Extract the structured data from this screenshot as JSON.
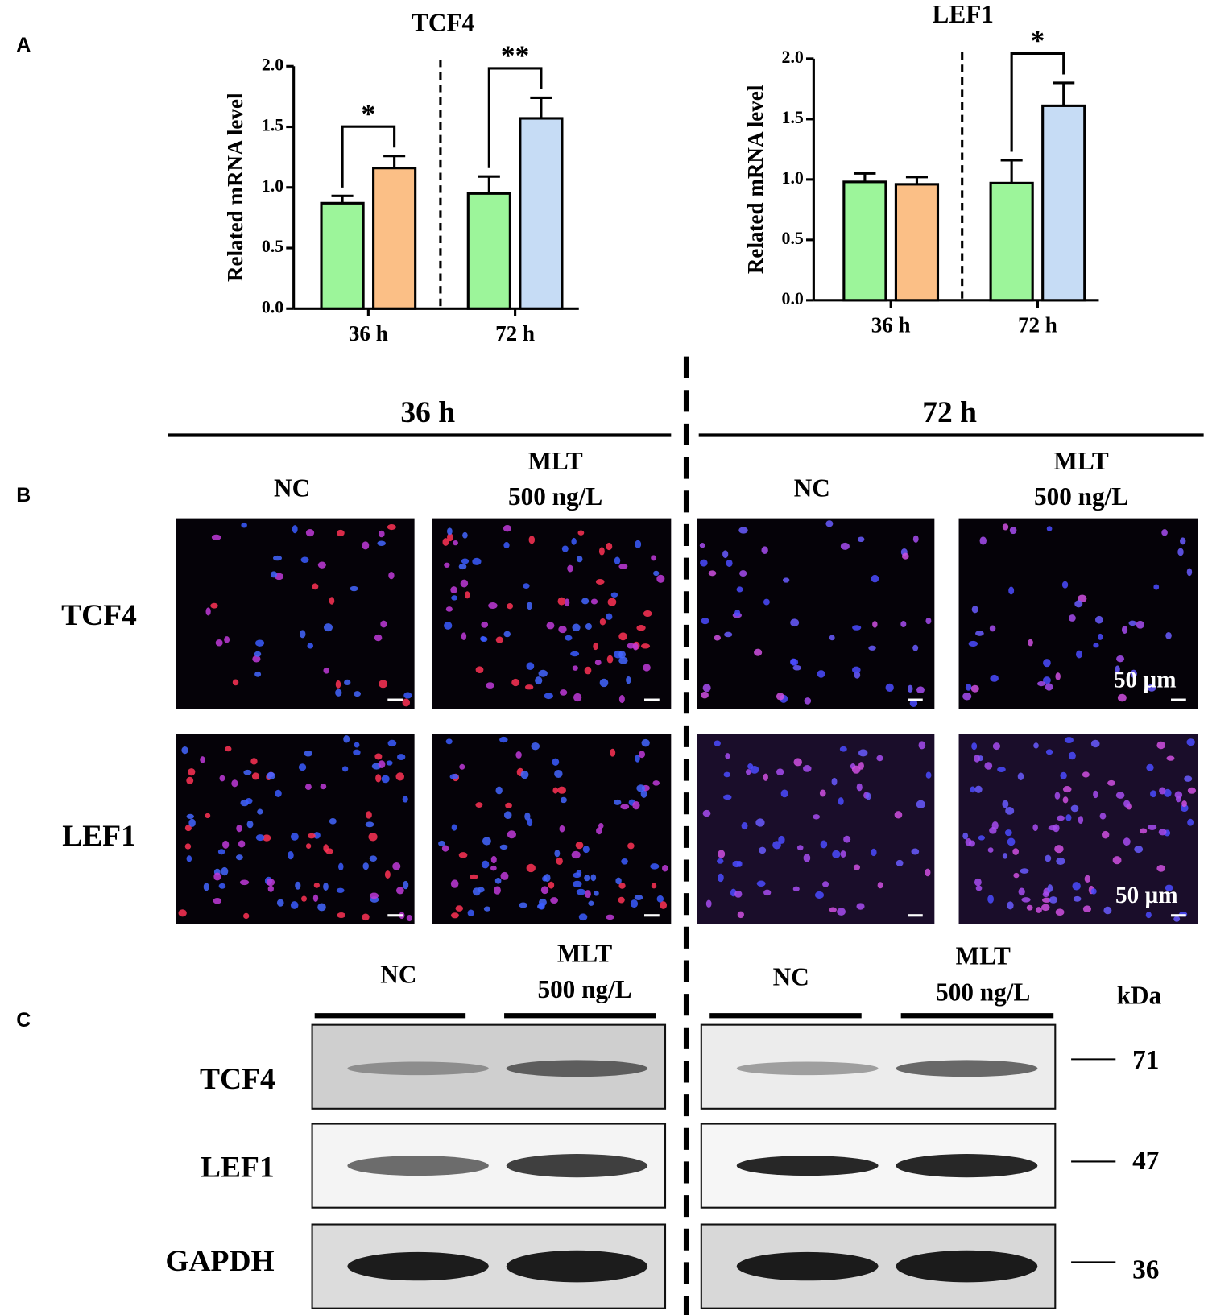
{
  "panel_labels": [
    "A",
    "B",
    "C"
  ],
  "chart_data": [
    {
      "type": "bar",
      "title": "TCF4",
      "ylabel": "Related  mRNA  level",
      "categories": [
        "36 h",
        "72 h"
      ],
      "series": [
        {
          "color": "#9cf59a",
          "values": [
            0.87,
            0.95
          ],
          "errors": [
            0.06,
            0.14
          ]
        },
        {
          "colors": [
            "#fbbf86",
            "#c6dcf5"
          ],
          "values": [
            1.16,
            1.57
          ],
          "errors": [
            0.1,
            0.17
          ]
        }
      ],
      "significance": [
        "*",
        "**"
      ],
      "ylim": [
        0,
        2
      ],
      "yticks": [
        {
          "value": 0,
          "label": "0.0"
        },
        {
          "value": 0.5,
          "label": "0.5"
        },
        {
          "value": 1,
          "label": "1.0"
        },
        {
          "value": 1.5,
          "label": "1.5"
        },
        {
          "value": 2,
          "label": "2.0"
        }
      ]
    },
    {
      "type": "bar",
      "title": "LEF1",
      "ylabel": "Related  mRNA  level",
      "categories": [
        "36 h",
        "72 h"
      ],
      "series": [
        {
          "color": "#9cf59a",
          "values": [
            0.98,
            0.97
          ],
          "errors": [
            0.07,
            0.19
          ]
        },
        {
          "colors": [
            "#fbbf86",
            "#c6dcf5"
          ],
          "values": [
            0.96,
            1.61
          ],
          "errors": [
            0.06,
            0.19
          ]
        }
      ],
      "significance": [
        null,
        "*"
      ],
      "ylim": [
        0,
        2
      ],
      "yticks": [
        {
          "value": 0,
          "label": "0.0"
        },
        {
          "value": 0.5,
          "label": "0.5"
        },
        {
          "value": 1,
          "label": "1.0"
        },
        {
          "value": 1.5,
          "label": "1.5"
        },
        {
          "value": 2,
          "label": "2.0"
        }
      ]
    }
  ],
  "panel_b": {
    "times": [
      "36 h",
      "72 h"
    ],
    "conditions": [
      [
        "NC"
      ],
      [
        "MLT",
        "500 ng/L"
      ]
    ],
    "rows": [
      "TCF4",
      "LEF1"
    ],
    "scale_bar": "50 µm"
  },
  "panel_c": {
    "conditions": [
      [
        "NC"
      ],
      [
        "MLT",
        "500 ng/L"
      ]
    ],
    "unit": "kDa",
    "rows": [
      "TCF4",
      "LEF1",
      "GAPDH"
    ],
    "markers": [
      71,
      47,
      36
    ]
  }
}
